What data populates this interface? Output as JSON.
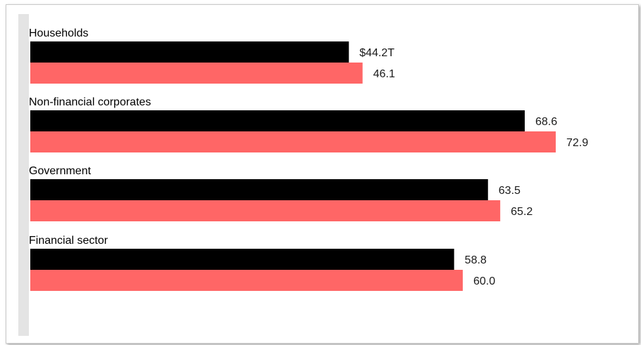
{
  "chart_data": {
    "type": "bar",
    "orientation": "horizontal",
    "categories": [
      "Households",
      "Non-financial corporates",
      "Government",
      "Financial sector"
    ],
    "series": [
      {
        "color": "#000000",
        "values": [
          44.2,
          68.6,
          63.5,
          58.8
        ],
        "labels": [
          "$44.2T",
          "68.6",
          "63.5",
          "58.8"
        ]
      },
      {
        "color": "#ff6666",
        "values": [
          46.1,
          72.9,
          65.2,
          60.0
        ],
        "labels": [
          "46.1",
          "72.9",
          "65.2",
          "60.0"
        ]
      }
    ],
    "xlim": [
      0,
      73
    ],
    "grid": false,
    "axis_line_color": "#e4e4e4"
  }
}
